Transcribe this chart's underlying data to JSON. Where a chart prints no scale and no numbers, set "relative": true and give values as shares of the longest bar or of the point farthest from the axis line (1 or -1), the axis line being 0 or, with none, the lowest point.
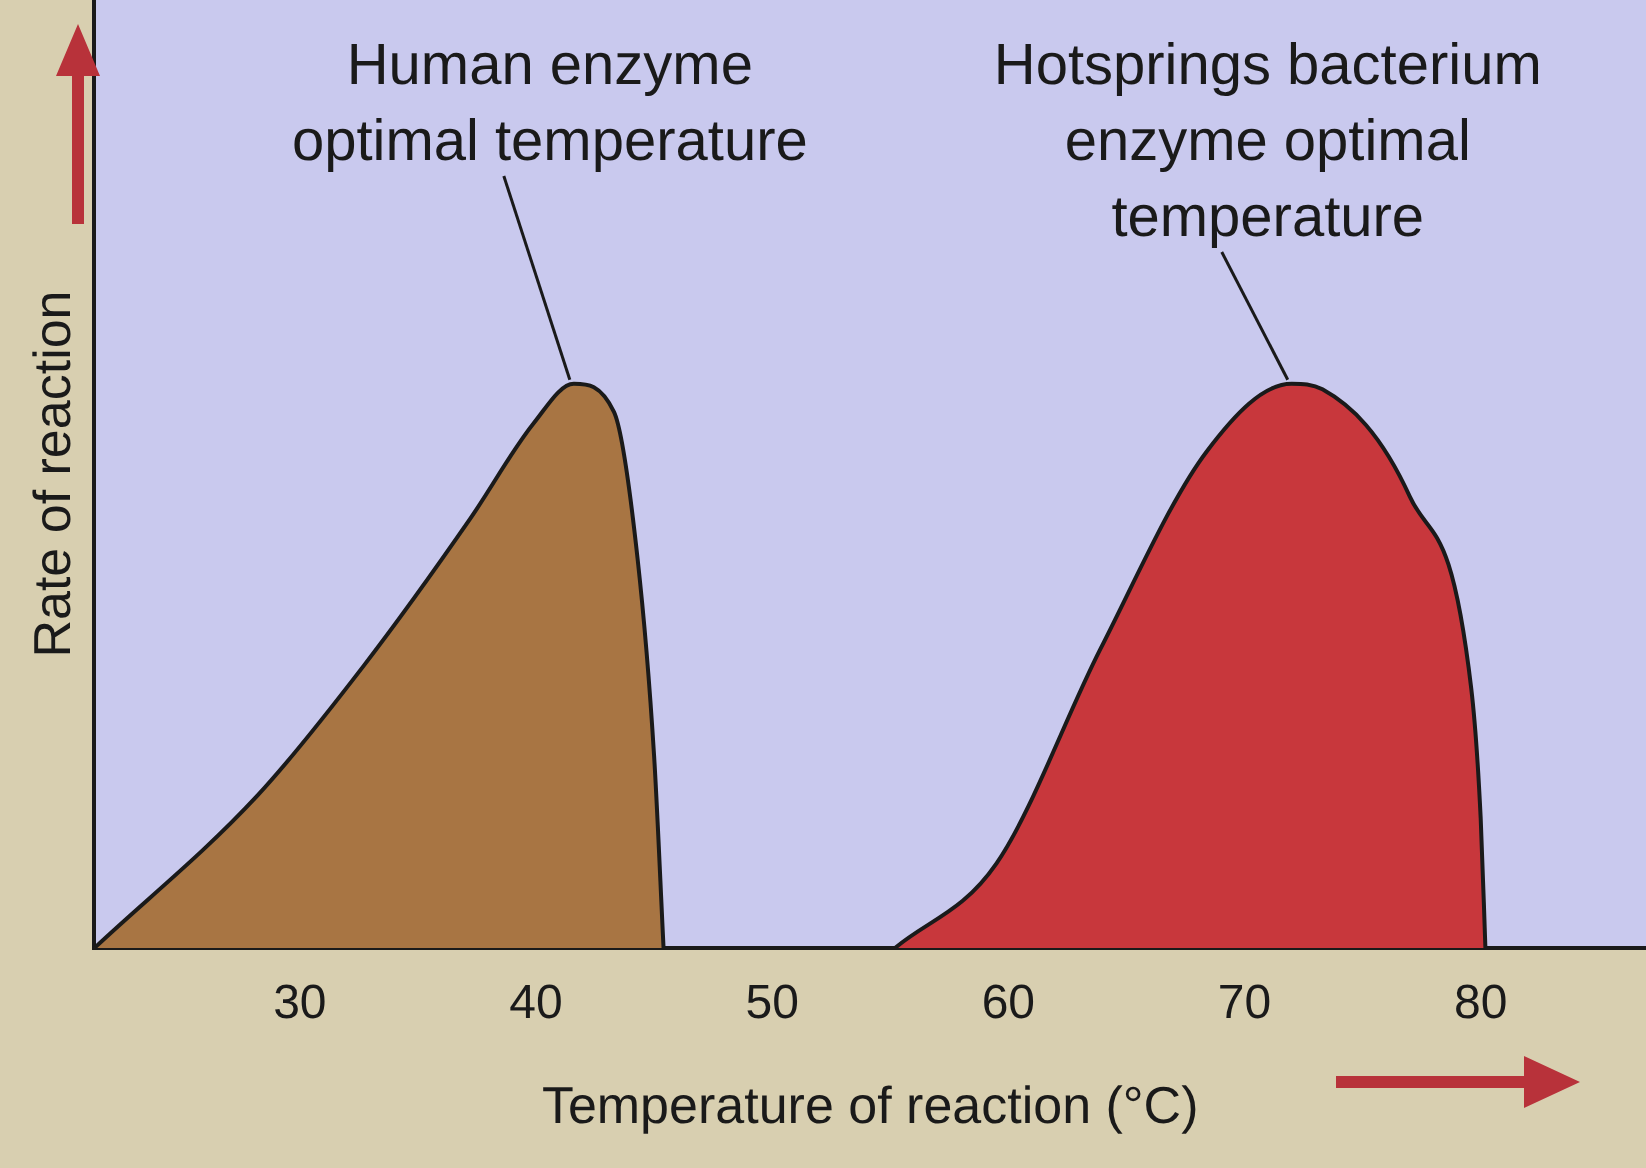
{
  "chart_data": {
    "type": "area",
    "relative": true,
    "xlabel": "Temperature of reaction (°C)",
    "ylabel": "Rate of reaction",
    "xlim": [
      21.3,
      87
    ],
    "xticks": [
      30,
      40,
      50,
      60,
      70,
      80
    ],
    "tick_labels": "x",
    "grid": false,
    "legend": false,
    "marker": "none",
    "series": [
      {
        "color": "#a87543",
        "x": [
          21.3,
          28.2,
          32.7,
          37.2,
          39.9,
          41.6,
          43.3,
          44.3,
          45,
          45.4
        ],
        "values": [
          0,
          0.27,
          0.5,
          0.76,
          0.93,
          1,
          0.95,
          0.69,
          0.34,
          0
        ]
      },
      {
        "color": "#c8373c",
        "x": [
          55.2,
          59.5,
          63.9,
          68.4,
          72,
          73.3,
          77,
          79.6,
          80,
          80.2
        ],
        "values": [
          0,
          0.15,
          0.53,
          0.88,
          1,
          0.99,
          0.8,
          0.46,
          0.23,
          0
        ]
      }
    ],
    "annotations": [
      {
        "text": "Human enzyme optimal temperature",
        "x": 41.6,
        "y": 1
      },
      {
        "text": "Hotsprings bacterium enzyme optimal temperature",
        "x": 72,
        "y": 1
      }
    ]
  }
}
